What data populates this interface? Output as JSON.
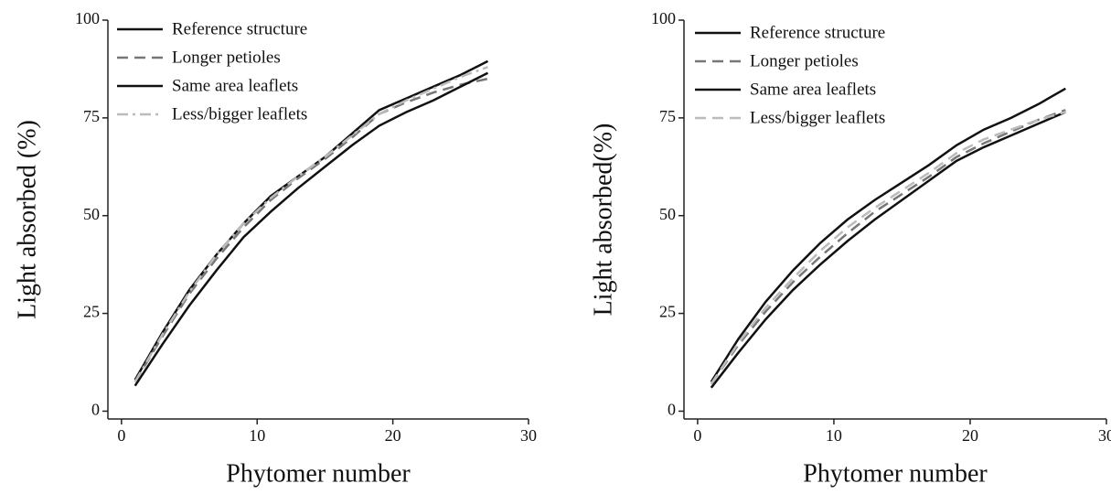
{
  "chart_data": [
    {
      "type": "line",
      "x_label": "Phytomer number",
      "y_label": "Light absorbed (%)",
      "x": [
        1,
        3,
        5,
        7,
        9,
        11,
        13,
        15,
        17,
        19,
        21,
        23,
        25,
        27
      ],
      "xlim": [
        -1,
        30
      ],
      "xticks": [
        0,
        10,
        20,
        30
      ],
      "ylim": [
        -2,
        100
      ],
      "yticks": [
        0,
        25,
        50,
        75,
        100
      ],
      "legend": "upper left",
      "series": [
        {
          "name": "Reference structure",
          "color": "#111111",
          "dash": "solid",
          "values": [
            8,
            20,
            31,
            40,
            48,
            55,
            60,
            65,
            71,
            77,
            80,
            83,
            86,
            89.5
          ]
        },
        {
          "name": "Longer petioles",
          "color": "#777777",
          "dash": "dash",
          "values": [
            7.5,
            19,
            30,
            39,
            47,
            54,
            59.5,
            64.5,
            70,
            76,
            79,
            81.5,
            83.5,
            85
          ]
        },
        {
          "name": "Same area leaflets",
          "color": "#111111",
          "dash": "solid",
          "values": [
            6.5,
            17,
            27,
            36,
            44.5,
            51,
            57,
            62.5,
            68,
            73,
            76.5,
            79.5,
            83,
            86.5
          ]
        },
        {
          "name": "Less/bigger leaflets",
          "color": "#bbbbbb",
          "dash": "dashdot",
          "values": [
            7.5,
            19.5,
            30.5,
            40,
            48,
            54.5,
            60,
            65,
            70.5,
            76,
            79.5,
            82.5,
            85.5,
            88
          ]
        }
      ]
    },
    {
      "type": "line",
      "x_label": "Phytomer number",
      "y_label": "Light absorbed(%)",
      "x": [
        1,
        3,
        5,
        7,
        9,
        11,
        13,
        15,
        17,
        19,
        21,
        23,
        25,
        27
      ],
      "xlim": [
        -1,
        30
      ],
      "xticks": [
        0,
        10,
        20,
        30
      ],
      "ylim": [
        -2,
        100
      ],
      "yticks": [
        0,
        25,
        50,
        75,
        100
      ],
      "legend": "upper left",
      "series": [
        {
          "name": "Reference structure",
          "color": "#111111",
          "dash": "solid",
          "values": [
            7.5,
            18.5,
            28,
            36,
            43,
            49,
            54,
            58.5,
            63,
            68,
            72,
            75,
            78.5,
            82.5
          ]
        },
        {
          "name": "Longer petioles",
          "color": "#777777",
          "dash": "dash",
          "values": [
            7,
            17,
            25.5,
            33,
            39.5,
            45.5,
            51,
            55.5,
            60,
            65,
            68.5,
            71.5,
            74.5,
            77
          ]
        },
        {
          "name": "Same area leaflets",
          "color": "#111111",
          "dash": "solid",
          "values": [
            6,
            15,
            23.5,
            31,
            37.5,
            43.5,
            49,
            54,
            59,
            64,
            67.5,
            70.5,
            73.5,
            76.5
          ]
        },
        {
          "name": "Less/bigger leaflets",
          "color": "#bbbbbb",
          "dash": "dash",
          "values": [
            7,
            17.5,
            26.5,
            34,
            41,
            47,
            52,
            56.5,
            61,
            66,
            69.5,
            72,
            74.5,
            76.5
          ]
        }
      ]
    }
  ]
}
